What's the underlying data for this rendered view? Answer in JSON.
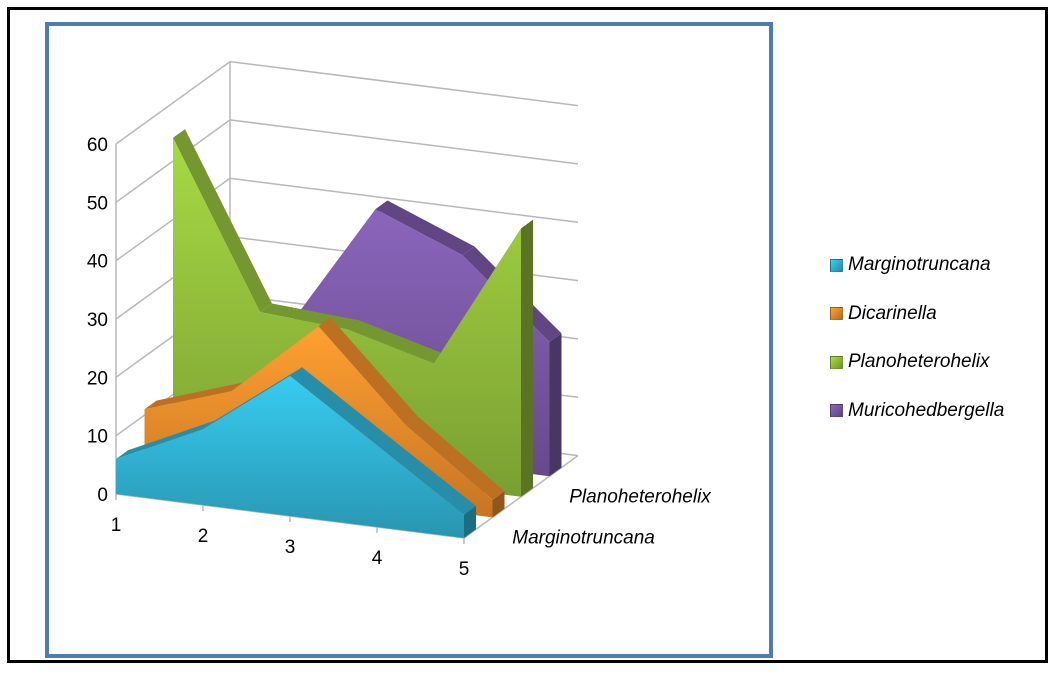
{
  "chart_data": {
    "type": "area",
    "subtype": "3d-area",
    "title": "",
    "xlabel": "",
    "ylabel": "",
    "categories": [
      "1",
      "2",
      "3",
      "4",
      "5"
    ],
    "ylim": [
      0,
      60
    ],
    "y_ticks": [
      "0",
      "10",
      "20",
      "30",
      "40",
      "50",
      "60"
    ],
    "depth_labels": [
      "Marginotruncana",
      "Planoheterohelix"
    ],
    "grid": true,
    "legend_position": "right",
    "series": [
      {
        "name": "Marginotruncana",
        "values": [
          6,
          13,
          24,
          14,
          4
        ],
        "color": "#31b6d7"
      },
      {
        "name": "Dicarinella",
        "values": [
          11,
          16,
          29,
          14,
          3
        ],
        "color": "#f28f2c"
      },
      {
        "name": "Planoheterohelix",
        "values": [
          54,
          26,
          25,
          21,
          46
        ],
        "color": "#95c23d"
      },
      {
        "name": "Muricohedbergella",
        "values": [
          8,
          20,
          42,
          36,
          23
        ],
        "color": "#7c5aa8"
      }
    ]
  },
  "colors": {
    "frame_border": "#000000",
    "chart_border": "#4f7bb5",
    "gridline": "#b8b8b8"
  }
}
